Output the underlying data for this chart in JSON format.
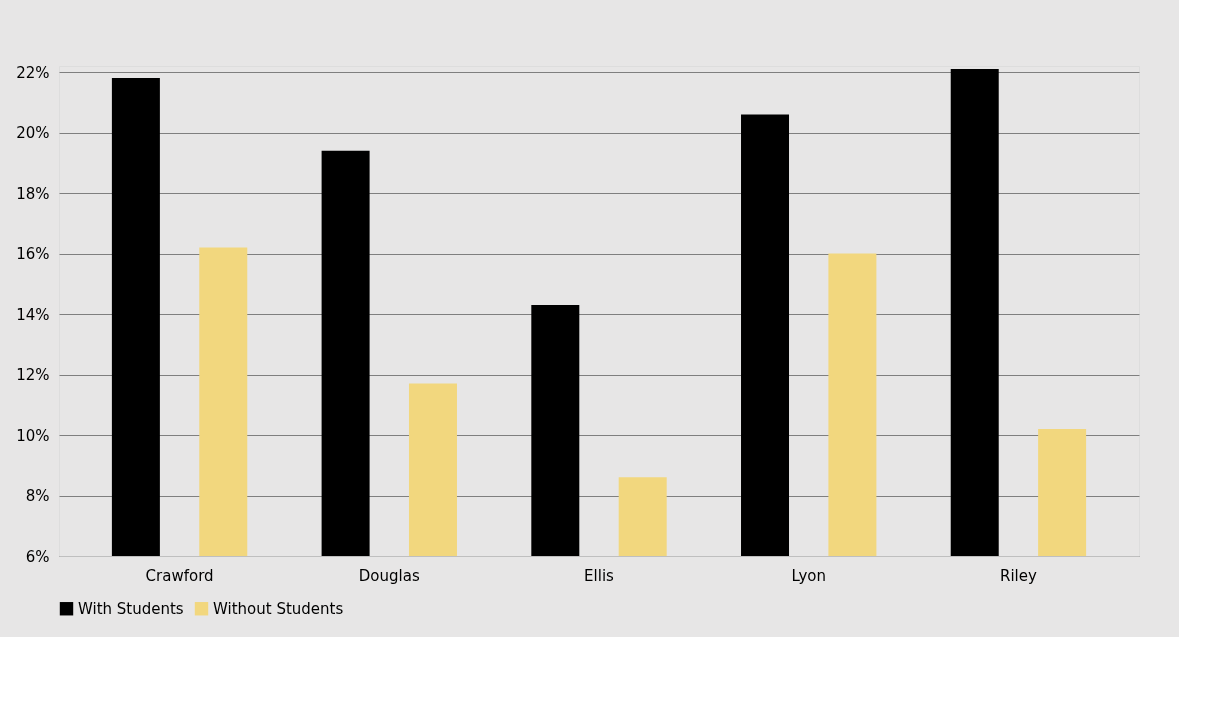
{
  "chart_data": {
    "type": "bar",
    "categories": [
      "Crawford",
      "Douglas",
      "Ellis",
      "Lyon",
      "Riley"
    ],
    "series": [
      {
        "name": "With Students",
        "color": "#000000",
        "values": [
          21.8,
          19.4,
          14.3,
          20.6,
          22.1
        ]
      },
      {
        "name": "Without Students",
        "color": "#f2d77e",
        "values": [
          16.2,
          11.7,
          8.6,
          16.0,
          10.2
        ]
      }
    ],
    "ylim": [
      6,
      22.2
    ],
    "yticks": [
      {
        "value": 6,
        "label": "6%"
      },
      {
        "value": 8,
        "label": "8%"
      },
      {
        "value": 10,
        "label": "10%"
      },
      {
        "value": 12,
        "label": "12%"
      },
      {
        "value": 14,
        "label": "14%"
      },
      {
        "value": 16,
        "label": "16%"
      },
      {
        "value": 18,
        "label": "18%"
      },
      {
        "value": 20,
        "label": "20%"
      },
      {
        "value": 22,
        "label": "22%"
      }
    ],
    "grid": "y",
    "legend": "bottom"
  }
}
